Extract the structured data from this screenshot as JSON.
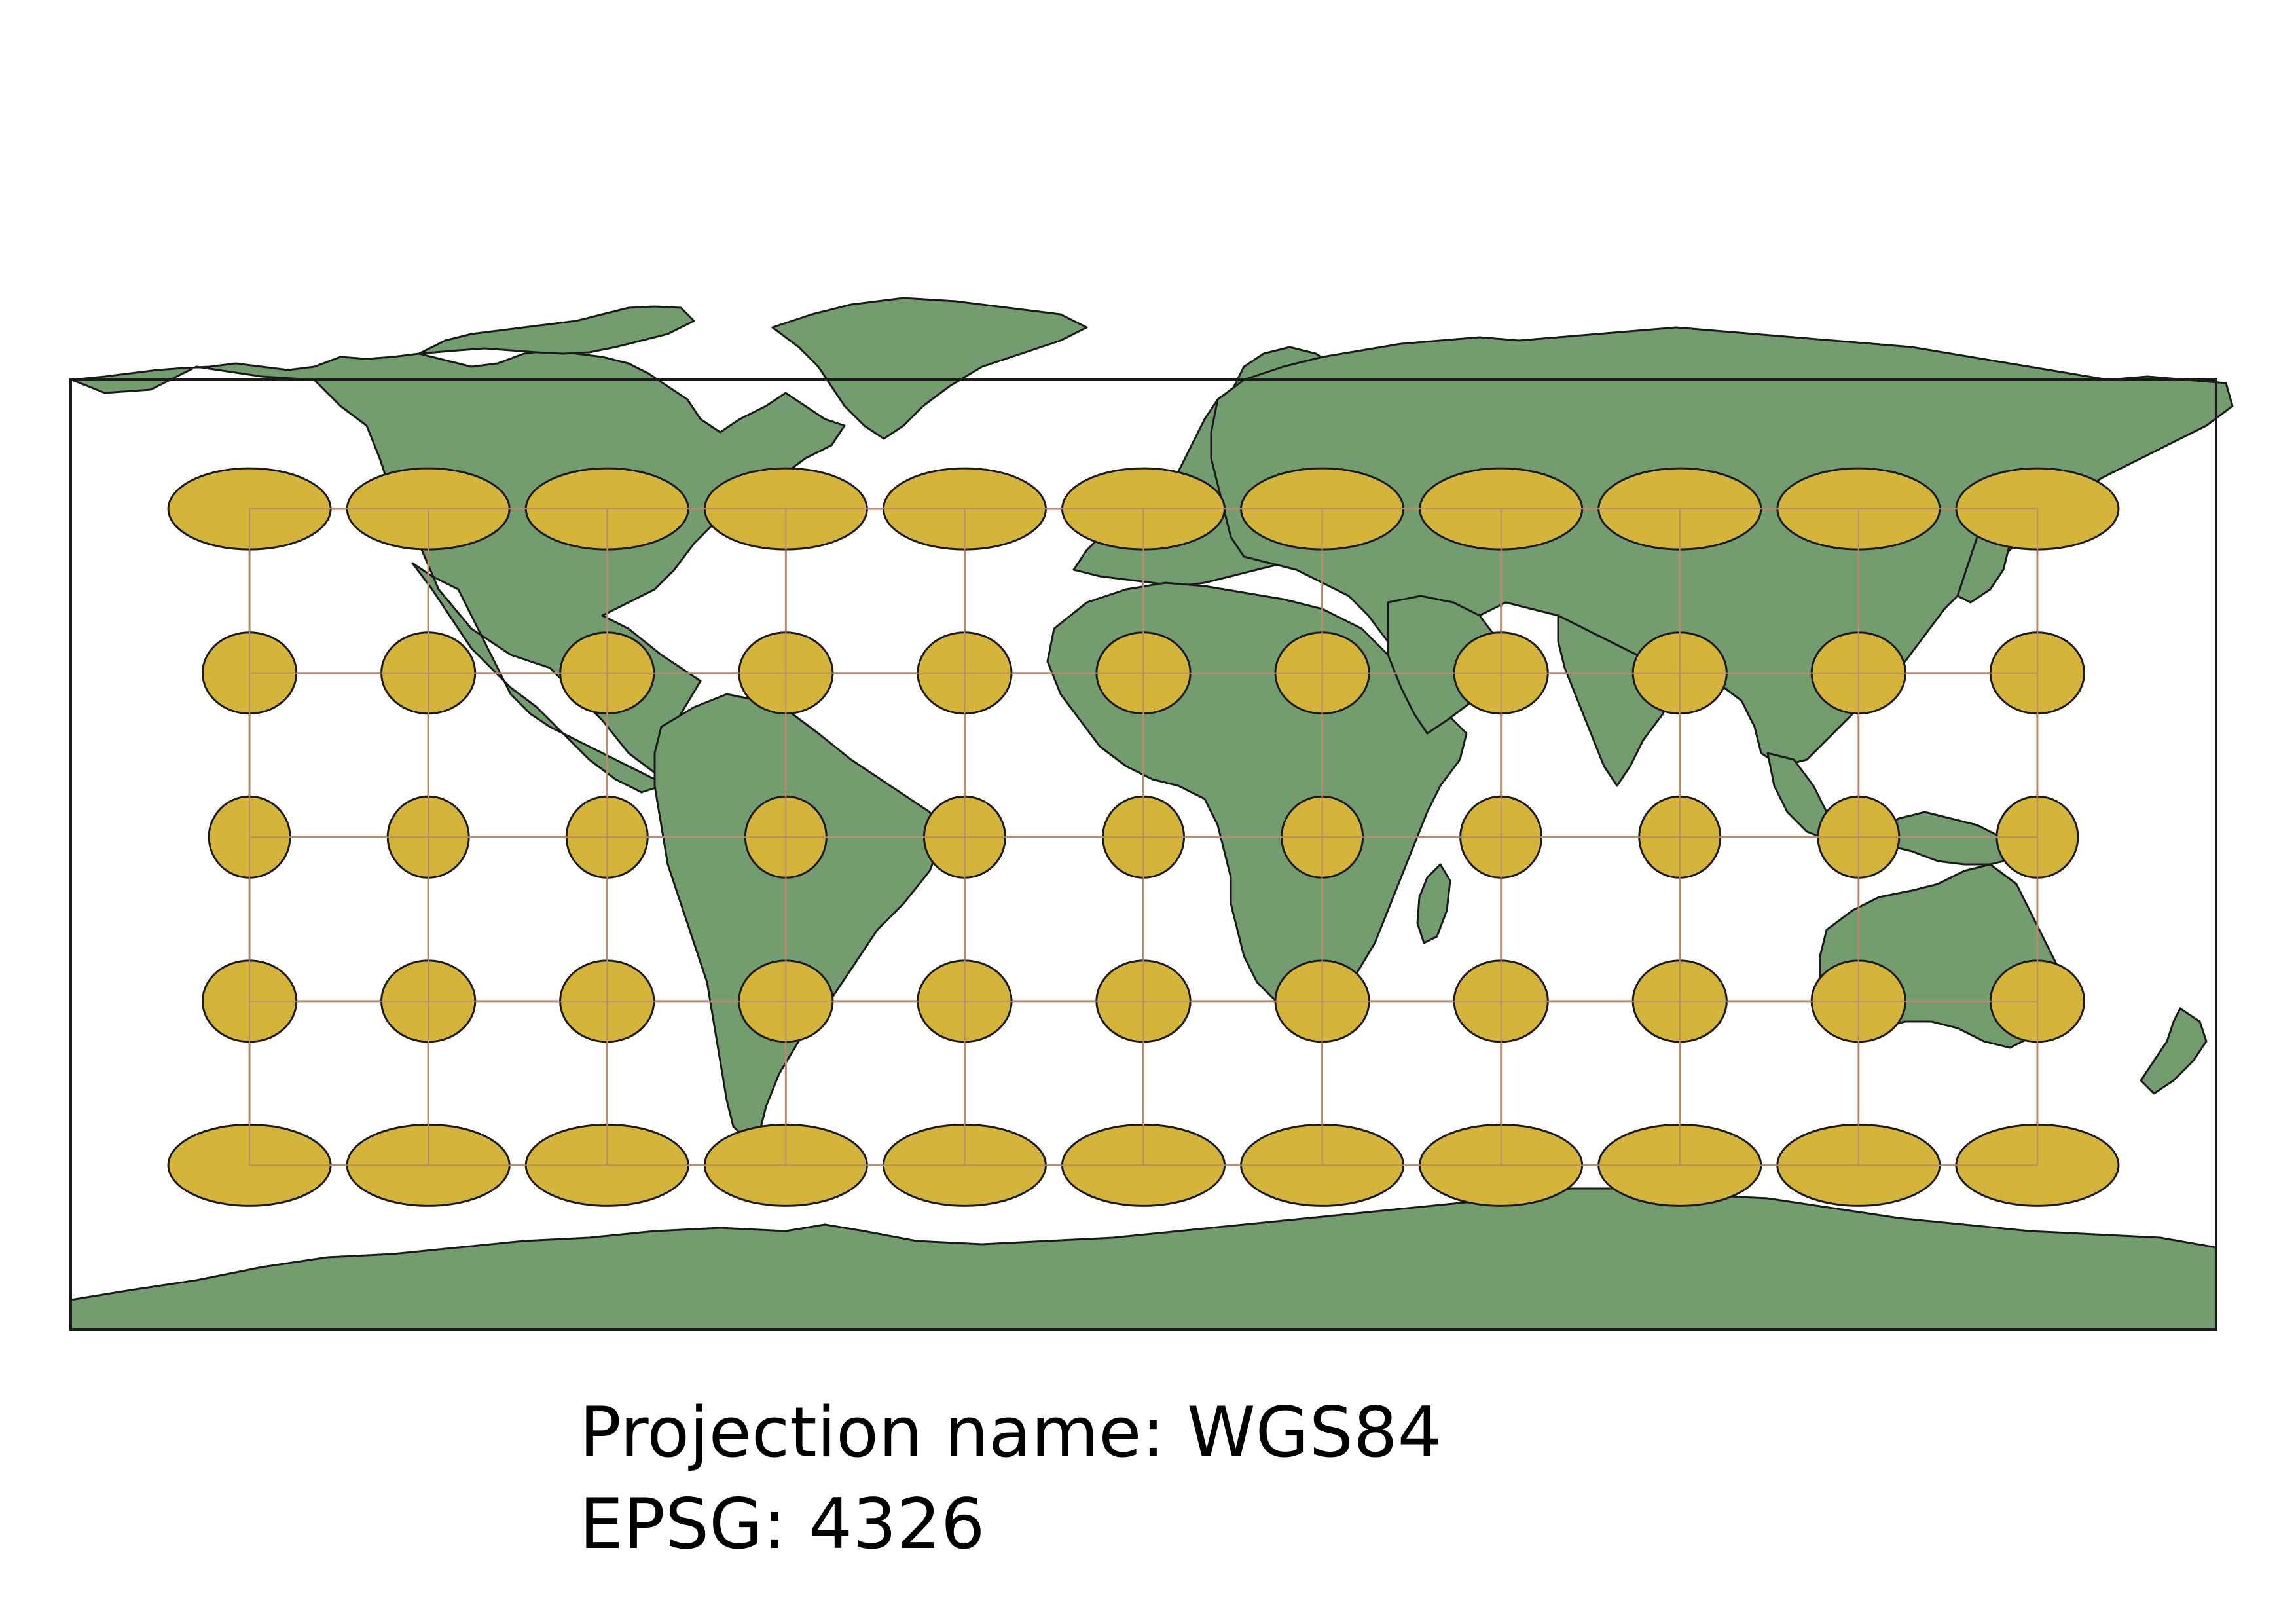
{
  "map": {
    "projection_label": "Projection name: WGS84",
    "epsg_label": "EPSG: 4326",
    "crs": "WGS84 geographic (plate carrée), EPSG 4326",
    "extent": {
      "lon": [
        -180,
        180
      ],
      "lat": [
        -90,
        83.6
      ]
    },
    "colors": {
      "land": "#739d6e",
      "land_outline": "#1a1a1a",
      "graticule": "#b88a6e",
      "indicatrix_fill": "#d4b43b",
      "indicatrix_outline": "#1a1a1a",
      "background": "#ffffff"
    },
    "graticule": {
      "longitudes": [
        -150,
        -120,
        -90,
        -60,
        -30,
        0,
        30,
        60,
        90,
        120,
        150
      ],
      "latitudes": [
        60,
        30,
        0,
        -30,
        -60
      ]
    },
    "indicatrix": {
      "description": "Tissot's indicatrix circles drawn at every graticule intersection",
      "longitudes": [
        -150,
        -120,
        -90,
        -60,
        -30,
        0,
        30,
        60,
        90,
        120,
        150
      ],
      "latitudes": [
        60,
        30,
        0,
        -30,
        -60
      ]
    }
  }
}
